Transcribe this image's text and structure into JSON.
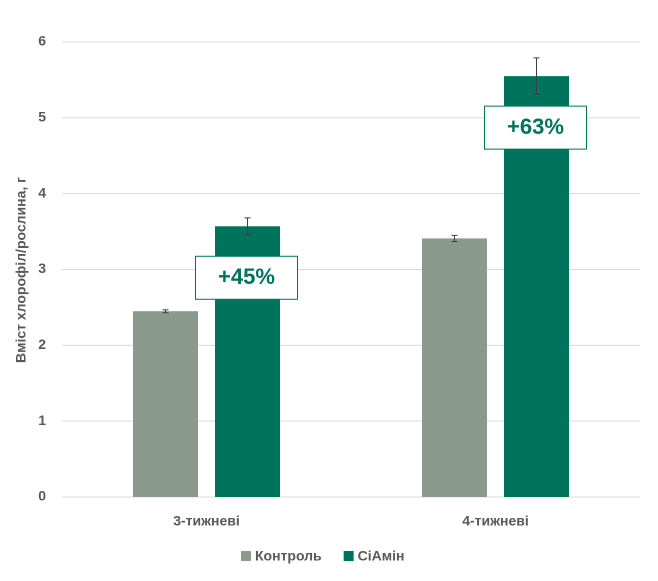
{
  "chart_data": {
    "type": "bar",
    "y_label": "Вміст хлорофіл/рослина, г",
    "categories": [
      "3-тижневі",
      "4-тижневі"
    ],
    "series": [
      {
        "name": "Контроль",
        "color": "#8a9a8c",
        "values": [
          2.45,
          3.41
        ],
        "errors": [
          0.02,
          0.04
        ]
      },
      {
        "name": "СіАмін",
        "color": "#00735c",
        "values": [
          3.57,
          5.55
        ],
        "errors": [
          0.11,
          0.24
        ]
      }
    ],
    "annotations": [
      "+45%",
      "+63%"
    ],
    "ylim": [
      0,
      6
    ],
    "yticks": [
      0,
      1,
      2,
      3,
      4,
      5,
      6
    ],
    "grid": true,
    "legend": "bottom"
  }
}
